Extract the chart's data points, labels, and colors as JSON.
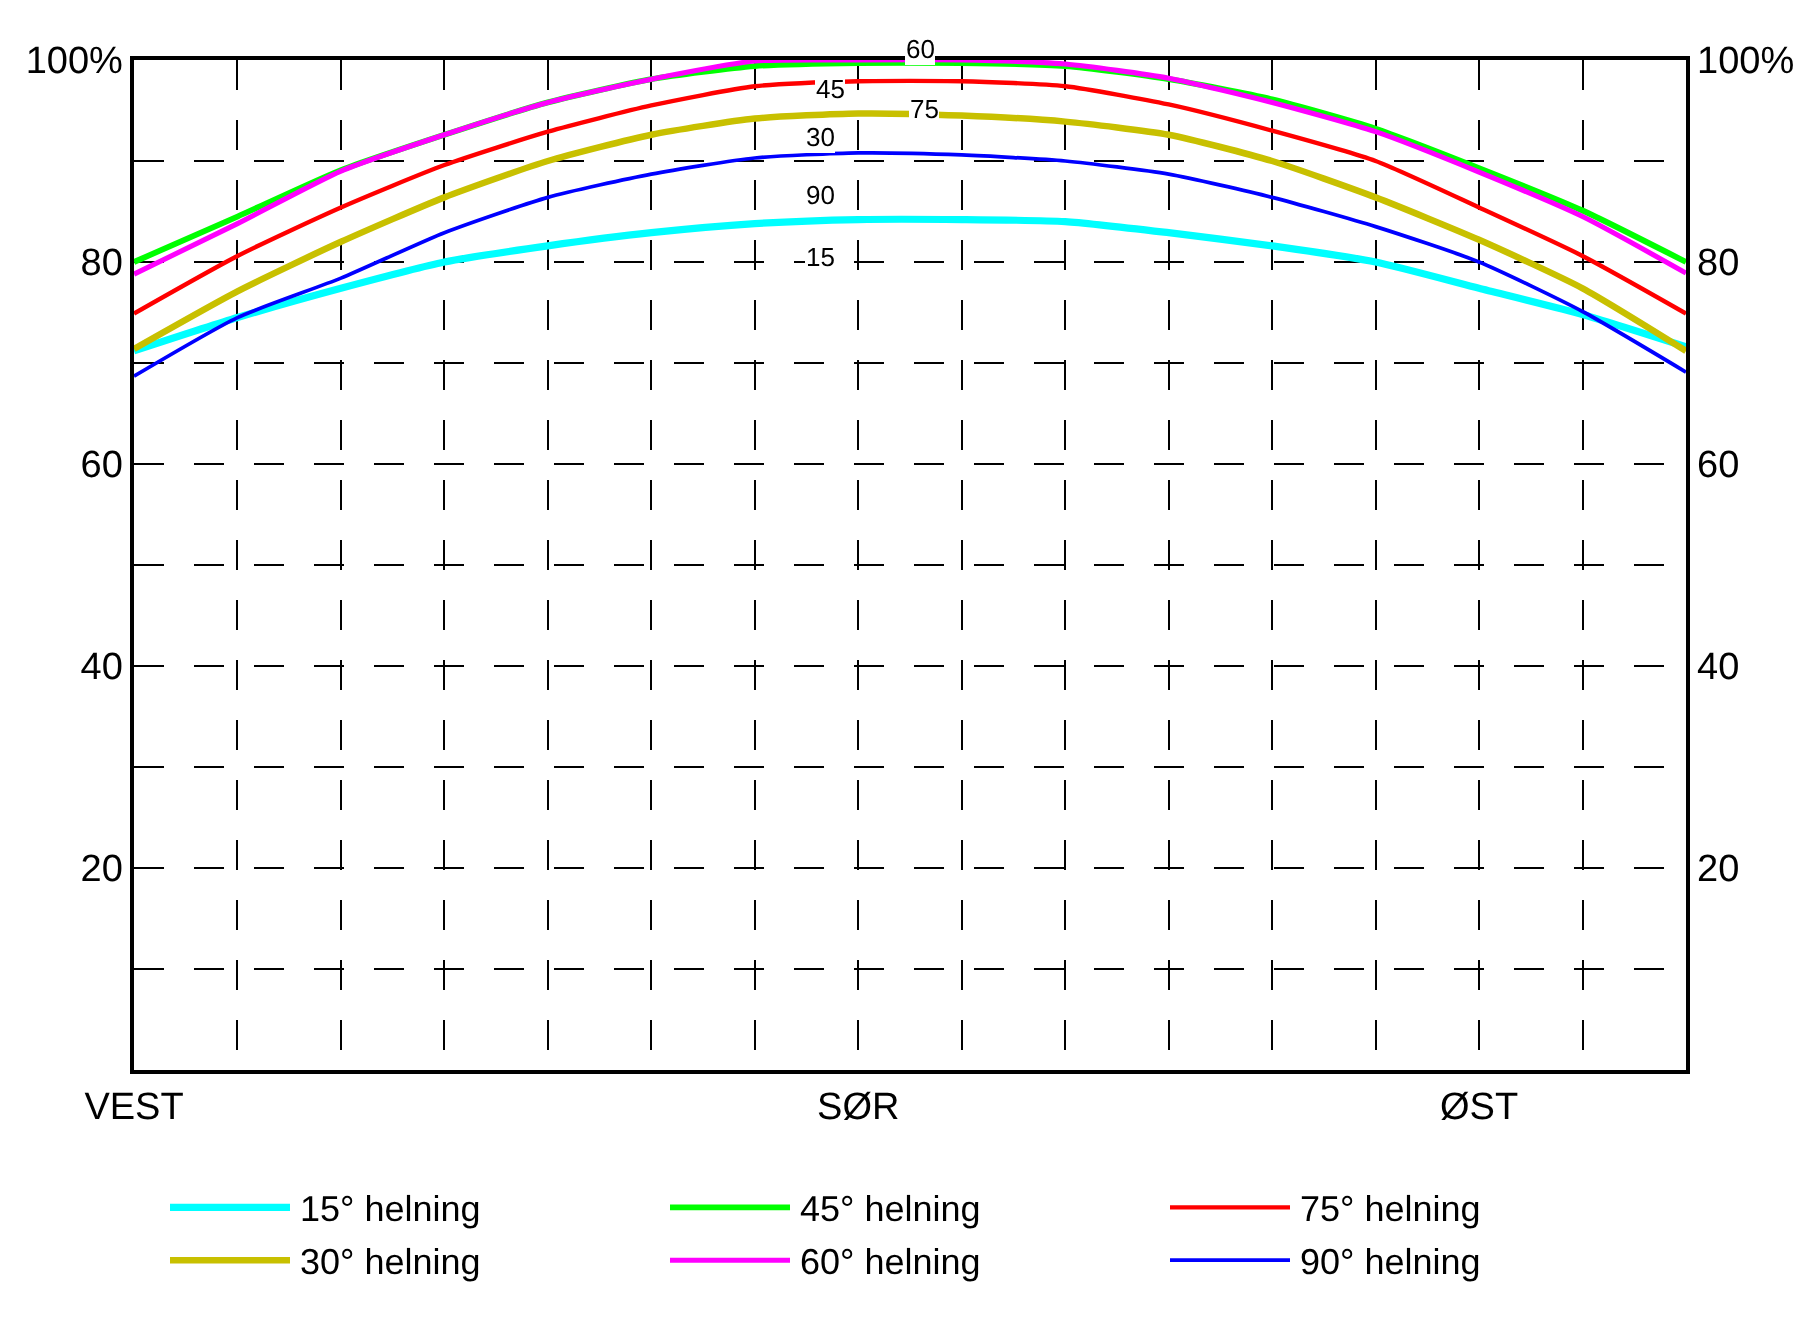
{
  "chart_data": {
    "type": "line",
    "categories": [
      "VEST",
      null,
      null,
      null,
      null,
      null,
      null,
      "SØR",
      null,
      null,
      null,
      null,
      null,
      "ØST",
      null,
      null
    ],
    "series": [
      {
        "name": "15° helning",
        "color": "#00ffff",
        "values": [
          71.2,
          74.5,
          77.4,
          80,
          81.6,
          82.9,
          83.8,
          84.2,
          84.2,
          84,
          82.9,
          81.6,
          80,
          77.4,
          74.8,
          71.6
        ]
      },
      {
        "name": "30° helning",
        "color": "#c8c000",
        "values": [
          71.4,
          77.1,
          82,
          86.4,
          90,
          92.6,
          94.2,
          94.7,
          94.5,
          93.9,
          92.6,
          90,
          86.4,
          82.2,
          77.4,
          71.2
        ]
      },
      {
        "name": "45° helning",
        "color": "#00ff00",
        "values": [
          80,
          84.5,
          89.1,
          92.6,
          95.8,
          98.1,
          99.4,
          99.7,
          99.7,
          99.4,
          98.1,
          96.1,
          93.2,
          89.3,
          85.1,
          80
        ]
      },
      {
        "name": "60° helning",
        "color": "#ff00ff",
        "values": [
          78.8,
          83.8,
          89,
          92.6,
          95.8,
          98.1,
          99.9,
          100,
          100,
          99.6,
          98.2,
          95.8,
          92.9,
          88.9,
          84.5,
          78.9
        ]
      },
      {
        "name": "75° helning",
        "color": "#ff0000",
        "values": [
          74.9,
          80.6,
          85.4,
          89.6,
          92.9,
          95.5,
          97.4,
          97.9,
          97.9,
          97.4,
          95.6,
          93,
          90,
          85.4,
          80.6,
          74.9
        ]
      },
      {
        "name": "90° helning",
        "color": "#0000ff",
        "values": [
          68.7,
          74.5,
          78.4,
          82.9,
          86.4,
          88.7,
          90.3,
          90.8,
          90.6,
          90,
          88.7,
          86.4,
          83.5,
          80,
          75.1,
          69.1
        ]
      }
    ],
    "ylim": [
      0,
      100
    ],
    "yticks": [
      {
        "value": 10,
        "label": null
      },
      20,
      {
        "value": 30,
        "label": null
      },
      40,
      {
        "value": 50,
        "label": null
      },
      60,
      {
        "value": 70,
        "label": null
      },
      80,
      {
        "value": 90,
        "label": null
      },
      {
        "value": 100,
        "label": "100%"
      }
    ],
    "y2lim": [
      0,
      100
    ],
    "y2ticks": [
      20,
      40,
      60,
      80,
      {
        "value": 100,
        "label": "100%"
      }
    ],
    "annotations": [
      "60",
      "45",
      "75",
      "30",
      "90",
      "15"
    ],
    "grid": true,
    "legend": "bottom",
    "marker": "none",
    "line_style": "solid"
  }
}
